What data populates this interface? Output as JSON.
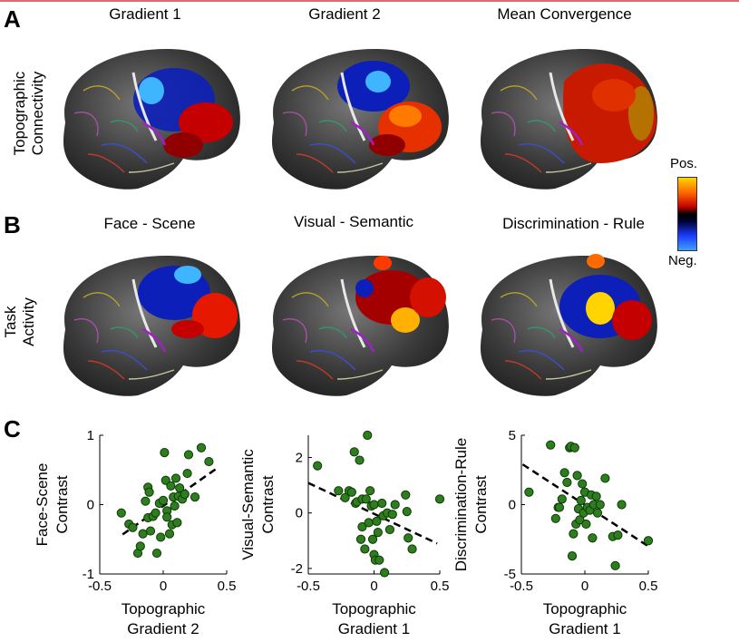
{
  "panel_letters": {
    "a": "A",
    "b": "B",
    "c": "C"
  },
  "row_labels": {
    "top": [
      "Topographic",
      "Connectivity"
    ],
    "middle": [
      "Task",
      "Activity"
    ]
  },
  "brain_titles": {
    "row1": [
      "Gradient 1",
      "Gradient 2",
      "Mean Convergence"
    ],
    "row2": [
      "Face - Scene",
      "Visual - Semantic",
      "Discrimination - Rule"
    ]
  },
  "colorbar": {
    "top_label": "Pos.",
    "bottom_label": "Neg.",
    "colors": [
      "#ffd400",
      "#ff6a00",
      "#c40000",
      "#000000",
      "#1a3cff",
      "#3ea0ff"
    ]
  },
  "scatter_color": "#2e7d1e",
  "chart_data": [
    {
      "type": "scatter",
      "ylabel": [
        "Face-Scene",
        "Contrast"
      ],
      "xlabel": [
        "Topographic",
        "Gradient 2"
      ],
      "xlim": [
        -0.5,
        0.5
      ],
      "ylim": [
        -1,
        1
      ],
      "xticks": [
        -0.5,
        0,
        0.5
      ],
      "xtick_labels": [
        "-0.5",
        "0",
        "0.5"
      ],
      "yticks": [
        -1,
        0,
        1
      ],
      "ytick_labels": [
        "-1",
        "0",
        "1"
      ],
      "fit_line": {
        "x": [
          -0.32,
          0.42
        ],
        "y": [
          -0.43,
          0.52
        ]
      },
      "x": [
        -0.33,
        -0.27,
        -0.24,
        -0.2,
        -0.18,
        -0.16,
        -0.14,
        -0.12,
        -0.12,
        -0.11,
        -0.1,
        -0.08,
        -0.06,
        -0.05,
        -0.03,
        -0.02,
        0.0,
        0.01,
        0.02,
        0.03,
        0.05,
        0.06,
        0.07,
        0.08,
        0.09,
        0.1,
        0.11,
        0.12,
        0.13,
        0.15,
        0.17,
        0.2,
        0.25,
        0.3,
        0.36,
        0.03,
        0.19
      ],
      "y": [
        -0.12,
        -0.28,
        -0.33,
        -0.7,
        -0.6,
        -0.42,
        0.05,
        -0.19,
        0.25,
        0.18,
        -0.38,
        -0.17,
        -0.12,
        -0.7,
        0.02,
        -0.47,
        0.06,
        0.75,
        0.35,
        -0.09,
        -0.42,
        0.27,
        -0.29,
        0.11,
        -0.02,
        0.38,
        -0.26,
        0.12,
        0.24,
        0.08,
        0.15,
        0.72,
        0.11,
        0.82,
        0.62,
        -0.18,
        0.45
      ]
    },
    {
      "type": "scatter",
      "ylabel": [
        "Visual-Semantic",
        "Contrast"
      ],
      "xlabel": [
        "Topographic",
        "Gradient 1"
      ],
      "xlim": [
        -0.5,
        0.5
      ],
      "ylim": [
        -2.2,
        2.8
      ],
      "xticks": [
        -0.5,
        0,
        0.5
      ],
      "xtick_labels": [
        "-0.5",
        "0",
        "0.5"
      ],
      "yticks": [
        -2,
        0,
        2
      ],
      "ytick_labels": [
        "-2",
        "0",
        "2"
      ],
      "fit_line": {
        "x": [
          -0.5,
          0.48
        ],
        "y": [
          1.08,
          -1.1
        ]
      },
      "x": [
        -0.43,
        -0.27,
        -0.22,
        -0.19,
        -0.15,
        -0.14,
        -0.13,
        -0.11,
        -0.1,
        -0.09,
        -0.09,
        -0.07,
        -0.06,
        -0.05,
        -0.04,
        -0.03,
        -0.02,
        -0.01,
        0.0,
        0.0,
        0.01,
        0.02,
        0.03,
        0.04,
        0.06,
        0.07,
        0.08,
        0.1,
        0.14,
        0.16,
        0.24,
        0.25,
        0.26,
        0.29,
        0.5,
        -0.17,
        0.12
      ],
      "y": [
        1.7,
        0.8,
        0.55,
        0.8,
        2.2,
        0.35,
        0.4,
        1.9,
        -0.95,
        -0.5,
        0.5,
        -1.3,
        0.5,
        2.8,
        -0.35,
        0.8,
        0.25,
        -0.95,
        0.3,
        -1.5,
        -1.7,
        -0.3,
        -0.7,
        -1.7,
        0.35,
        -0.1,
        -2.15,
        0.0,
        -0.05,
        0.3,
        0.65,
        0.05,
        -0.9,
        -1.3,
        0.5,
        0.75,
        -0.6
      ]
    },
    {
      "type": "scatter",
      "ylabel": [
        "Discrimination-Rule",
        "Contrast"
      ],
      "xlabel": [
        "Topographic",
        "Gradient 1"
      ],
      "xlim": [
        -0.5,
        0.5
      ],
      "ylim": [
        -5,
        5
      ],
      "xticks": [
        -0.5,
        0,
        0.5
      ],
      "xtick_labels": [
        "-0.5",
        "0",
        "0.5"
      ],
      "yticks": [
        -5,
        0,
        5
      ],
      "ytick_labels": [
        "-5",
        "0",
        "5"
      ],
      "fit_line": {
        "x": [
          -0.49,
          0.5
        ],
        "y": [
          2.9,
          -3.0
        ]
      },
      "x": [
        -0.44,
        -0.27,
        -0.23,
        -0.21,
        -0.18,
        -0.16,
        -0.14,
        -0.12,
        -0.11,
        -0.1,
        -0.09,
        -0.08,
        -0.07,
        -0.06,
        -0.05,
        -0.04,
        -0.03,
        -0.02,
        -0.01,
        0.0,
        0.01,
        0.02,
        0.04,
        0.05,
        0.06,
        0.07,
        0.09,
        0.1,
        0.12,
        0.22,
        0.24,
        0.26,
        0.29,
        0.5,
        -0.2,
        0.16
      ],
      "y": [
        0.9,
        4.3,
        -1.0,
        -0.2,
        0.4,
        2.3,
        1.6,
        4.1,
        4.2,
        -3.7,
        -2.1,
        4.1,
        -1.4,
        2.1,
        -0.3,
        -1.1,
        0.3,
        1.5,
        -0.6,
        0.9,
        -1.4,
        -0.2,
        -0.4,
        0.7,
        -2.4,
        0.0,
        0.6,
        -0.6,
        0.0,
        -2.3,
        -4.4,
        -2.2,
        0.0,
        -2.6,
        -0.2,
        1.9
      ]
    }
  ]
}
